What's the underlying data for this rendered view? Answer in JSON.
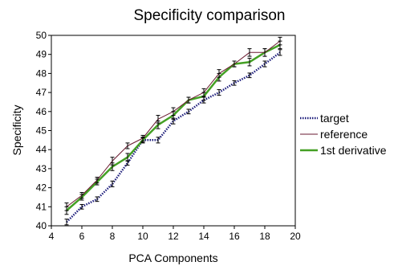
{
  "chart_data": {
    "type": "line",
    "title": "Specificity comparison",
    "xlabel": "PCA Components",
    "ylabel": "Specificity",
    "xlim": [
      4,
      20
    ],
    "ylim": [
      40,
      50
    ],
    "x_ticks": [
      "4",
      "6",
      "8",
      "10",
      "12",
      "14",
      "16",
      "18",
      "20"
    ],
    "y_ticks": [
      "40",
      "41",
      "42",
      "43",
      "44",
      "45",
      "46",
      "47",
      "48",
      "49",
      "50"
    ],
    "grid": false,
    "legend_position": "right",
    "x": [
      5,
      6,
      7,
      8,
      9,
      10,
      11,
      12,
      13,
      14,
      15,
      16,
      17,
      18,
      19
    ],
    "series": [
      {
        "name": "target",
        "color": "#1a1a7a",
        "style": "dotted",
        "values": [
          40.2,
          41.0,
          41.4,
          42.2,
          43.3,
          44.5,
          44.5,
          45.5,
          46.0,
          46.6,
          47.0,
          47.5,
          47.9,
          48.5,
          49.1
        ],
        "errors": [
          0.15,
          0.12,
          0.12,
          0.15,
          0.12,
          0.12,
          0.15,
          0.15,
          0.12,
          0.15,
          0.15,
          0.12,
          0.12,
          0.15,
          0.15
        ]
      },
      {
        "name": "reference",
        "color": "#6a1a30",
        "style": "solid",
        "values": [
          41.0,
          41.6,
          42.4,
          43.4,
          44.2,
          44.6,
          45.6,
          46.0,
          46.6,
          47.0,
          48.0,
          48.5,
          49.1,
          49.1,
          49.7
        ],
        "errors": [
          0.2,
          0.15,
          0.15,
          0.2,
          0.15,
          0.15,
          0.2,
          0.2,
          0.15,
          0.2,
          0.2,
          0.15,
          0.2,
          0.2,
          0.2
        ]
      },
      {
        "name": "1st derivative",
        "color": "#44a024",
        "style": "solid-thick",
        "values": [
          40.8,
          41.5,
          42.3,
          43.1,
          43.6,
          44.5,
          45.3,
          45.8,
          46.6,
          46.8,
          47.8,
          48.5,
          48.6,
          49.1,
          49.5
        ],
        "errors": [
          0.2,
          0.15,
          0.15,
          0.2,
          0.2,
          0.15,
          0.2,
          0.2,
          0.15,
          0.2,
          0.2,
          0.15,
          0.2,
          0.2,
          0.2
        ]
      }
    ]
  }
}
